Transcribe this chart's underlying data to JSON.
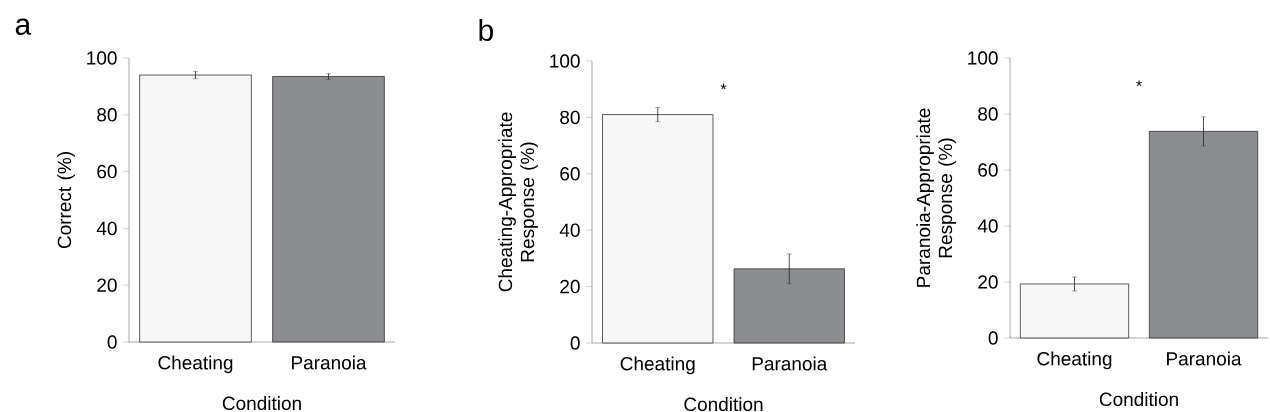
{
  "chart_data": [
    {
      "type": "bar",
      "title": "a",
      "xlabel": "Condition",
      "ylabel": "Correct (%)",
      "categories": [
        "Cheating",
        "Paranoia"
      ],
      "values": [
        94,
        93.5
      ],
      "errors": [
        1.3,
        1.0
      ],
      "colors": [
        "#f7f7f7",
        "#8c8d91"
      ],
      "ylim": [
        0,
        100
      ],
      "yticks": [
        0,
        20,
        40,
        60,
        80,
        100
      ]
    },
    {
      "type": "bar",
      "title": "b",
      "xlabel": "Condition",
      "ylabel": "Cheating-Appropriate Response (%)",
      "categories": [
        "Cheating",
        "Paranoia"
      ],
      "values": [
        81,
        26.3
      ],
      "errors": [
        2.5,
        5.3
      ],
      "colors": [
        "#f7f7f7",
        "#8c8d91"
      ],
      "ylim": [
        0,
        100
      ],
      "yticks": [
        0,
        20,
        40,
        60,
        80,
        100
      ],
      "annotations": [
        "*"
      ]
    },
    {
      "type": "bar",
      "xlabel": "Condition",
      "ylabel": "Paranoia-Appropriate Response (%)",
      "categories": [
        "Cheating",
        "Paranoia"
      ],
      "values": [
        19.3,
        73.8
      ],
      "errors": [
        2.5,
        5.2
      ],
      "colors": [
        "#f7f7f7",
        "#8c8d91"
      ],
      "ylim": [
        0,
        100
      ],
      "yticks": [
        0,
        20,
        40,
        60,
        80,
        100
      ],
      "annotations": [
        "*"
      ]
    }
  ]
}
